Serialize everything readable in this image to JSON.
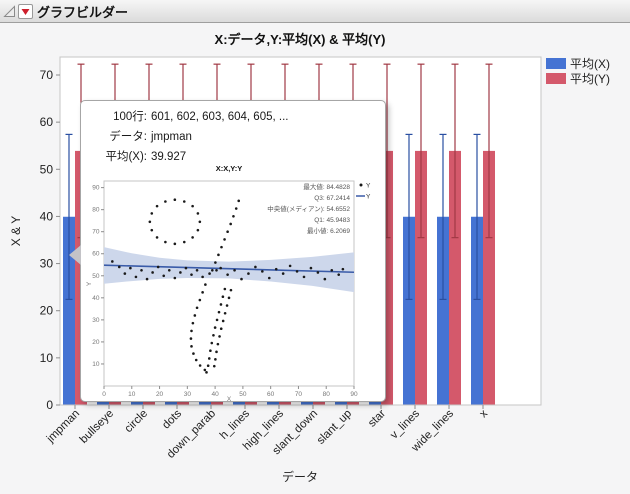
{
  "window": {
    "title": "グラフビルダー"
  },
  "tooltip": {
    "rows": [
      {
        "label": "100行:",
        "value": "601, 602, 603, 604, 605, ..."
      },
      {
        "label": "データ:",
        "value": "jmpman"
      },
      {
        "label": "平均(X):",
        "value": "39.927"
      }
    ]
  },
  "colors": {
    "blue_bar": "#4573D3",
    "blue_error": "#2A4FA2",
    "red_bar": "#D4596B",
    "red_error": "#A13945",
    "band_fill": "#CDD7EB",
    "fit_line": "#3A5BA8",
    "frame": "#C6C6C6",
    "tick": "#8C8C8C",
    "text": "#222222",
    "muted_text": "#777777"
  },
  "chart_data": [
    {
      "type": "bar",
      "title": "X:データ,Y:平均(X) & 平均(Y)",
      "xlabel": "データ",
      "ylabel": "X & Y",
      "ylim": [
        0,
        74
      ],
      "yticks": [
        0,
        10,
        20,
        30,
        40,
        50,
        60,
        70
      ],
      "grid": false,
      "legend_position": "right",
      "categories": [
        "jmpman",
        "bullseye",
        "circle",
        "dots",
        "down_parab",
        "h_lines",
        "high_lines",
        "slant_down",
        "slant_up",
        "star",
        "v_lines",
        "wide_lines",
        "x"
      ],
      "series": [
        {
          "name": "平均(X)",
          "values": [
            39.93,
            39.93,
            39.93,
            39.93,
            39.93,
            39.93,
            39.93,
            39.93,
            39.93,
            39.93,
            39.93,
            39.93,
            39.93
          ],
          "error_low": 22.4,
          "error_high": 57.4
        },
        {
          "name": "平均(Y)",
          "values": [
            53.9,
            53.9,
            53.9,
            53.9,
            53.9,
            53.9,
            53.9,
            53.9,
            53.9,
            53.9,
            53.9,
            53.9,
            53.9
          ],
          "error_low": 35.5,
          "error_high": 72.3
        }
      ]
    },
    {
      "type": "scatter",
      "title": "X:X,Y:Y",
      "xlabel": "X",
      "ylabel": "Y",
      "xlim": [
        0,
        90
      ],
      "ylim": [
        0,
        93
      ],
      "xticks": [
        0,
        10,
        20,
        30,
        40,
        50,
        60,
        70,
        80,
        90
      ],
      "yticks": [
        10,
        20,
        30,
        40,
        50,
        60,
        70,
        80,
        90
      ],
      "stats": [
        "最大値: 84.4828",
        "Q3: 67.2414",
        "中央値(メディアン): 54.6552",
        "Q1: 45.9483",
        "最小値: 6.2069"
      ],
      "legend": [
        {
          "marker": "dot",
          "label": "Y"
        },
        {
          "marker": "line",
          "label": "Y"
        }
      ],
      "fit_line": {
        "x1": 0,
        "y1": 54.8,
        "x2": 90,
        "y2": 51.6
      },
      "band_top": [
        [
          0,
          63
        ],
        [
          10,
          60.2
        ],
        [
          20,
          58.2
        ],
        [
          30,
          57
        ],
        [
          45,
          56.4
        ],
        [
          60,
          57.2
        ],
        [
          75,
          58.6
        ],
        [
          90,
          60.6
        ]
      ],
      "band_bottom": [
        [
          0,
          46.4
        ],
        [
          10,
          47.6
        ],
        [
          20,
          48.6
        ],
        [
          30,
          49
        ],
        [
          45,
          48.8
        ],
        [
          60,
          47.4
        ],
        [
          75,
          45.4
        ],
        [
          90,
          42.6
        ]
      ],
      "points": [
        [
          34.5,
          74.5
        ],
        [
          33.8,
          78.3
        ],
        [
          31.9,
          81.6
        ],
        [
          28.9,
          83.7
        ],
        [
          25.5,
          84.5
        ],
        [
          22.1,
          83.7
        ],
        [
          19.1,
          81.6
        ],
        [
          17.2,
          78.3
        ],
        [
          16.5,
          74.5
        ],
        [
          17.2,
          70.7
        ],
        [
          19.1,
          67.4
        ],
        [
          22.1,
          65.3
        ],
        [
          25.5,
          64.5
        ],
        [
          28.9,
          65.3
        ],
        [
          31.9,
          67.4
        ],
        [
          33.8,
          70.7
        ],
        [
          48.5,
          84
        ],
        [
          47.6,
          80.5
        ],
        [
          46.6,
          77
        ],
        [
          45.6,
          73.5
        ],
        [
          44.5,
          70
        ],
        [
          43.4,
          66.5
        ],
        [
          42.3,
          63
        ],
        [
          41.2,
          59.5
        ],
        [
          40.1,
          56
        ],
        [
          39,
          52.5
        ],
        [
          3,
          56.5
        ],
        [
          5.5,
          54
        ],
        [
          7.5,
          51
        ],
        [
          9.5,
          53.5
        ],
        [
          11.5,
          49.5
        ],
        [
          13.5,
          52.5
        ],
        [
          15.5,
          48.5
        ],
        [
          17.5,
          51.5
        ],
        [
          19.5,
          54
        ],
        [
          21.5,
          50
        ],
        [
          23.5,
          52.5
        ],
        [
          25.5,
          49
        ],
        [
          27.5,
          51.5
        ],
        [
          29.5,
          53.5
        ],
        [
          31.5,
          50.5
        ],
        [
          33.5,
          52.5
        ],
        [
          35.5,
          49.5
        ],
        [
          38,
          51
        ],
        [
          40.5,
          52.5
        ],
        [
          42,
          53.5
        ],
        [
          44.5,
          50.5
        ],
        [
          47,
          52.5
        ],
        [
          49.5,
          48.5
        ],
        [
          52,
          51
        ],
        [
          54.5,
          54
        ],
        [
          57,
          52
        ],
        [
          59.5,
          49
        ],
        [
          62,
          53
        ],
        [
          64.5,
          51
        ],
        [
          67,
          54.5
        ],
        [
          69.5,
          52
        ],
        [
          72,
          49.5
        ],
        [
          74.5,
          53.5
        ],
        [
          77,
          51.5
        ],
        [
          79.5,
          48.5
        ],
        [
          82,
          52.5
        ],
        [
          84.5,
          50.5
        ],
        [
          86,
          53
        ],
        [
          36.5,
          46
        ],
        [
          35.5,
          42.5
        ],
        [
          34.5,
          39
        ],
        [
          33.5,
          35.5
        ],
        [
          32.7,
          32
        ],
        [
          32,
          28.5
        ],
        [
          31.5,
          25
        ],
        [
          31.3,
          21.5
        ],
        [
          31.5,
          18
        ],
        [
          32.2,
          14.7
        ],
        [
          33.2,
          11.8
        ],
        [
          34.6,
          9.3
        ],
        [
          36.3,
          7.3
        ],
        [
          43.5,
          44
        ],
        [
          42.8,
          40.5
        ],
        [
          42.1,
          37
        ],
        [
          41.4,
          33.5
        ],
        [
          40.7,
          30
        ],
        [
          40,
          26.5
        ],
        [
          39.4,
          23
        ],
        [
          38.8,
          19.5
        ],
        [
          38.3,
          16
        ],
        [
          37.9,
          12.5
        ],
        [
          37.5,
          9.2
        ],
        [
          36.9,
          6.2
        ],
        [
          45.7,
          43.5
        ],
        [
          45,
          40
        ],
        [
          44.3,
          36.5
        ],
        [
          43.6,
          33
        ],
        [
          42.9,
          29.5
        ],
        [
          42.2,
          26
        ],
        [
          41.6,
          22.5
        ],
        [
          41,
          19
        ],
        [
          40.5,
          15.5
        ],
        [
          40.1,
          12.1
        ],
        [
          39.7,
          9
        ]
      ]
    }
  ]
}
